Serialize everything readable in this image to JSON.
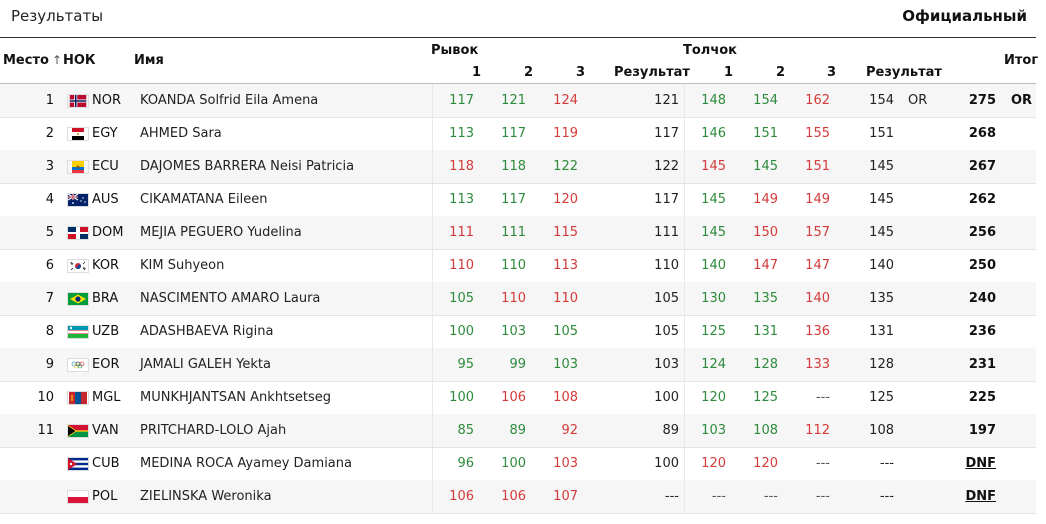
{
  "header": {
    "title": "Результаты",
    "status": "Официальный"
  },
  "columns": {
    "rank": "Место",
    "sort_icon": "↑",
    "noc": "НОК",
    "name": "Имя",
    "snatch": "Рывок",
    "cj": "Толчок",
    "attempt1": "1",
    "attempt2": "2",
    "attempt3": "3",
    "result": "Результат",
    "total": "Итог"
  },
  "colors": {
    "good": "#2e8b3d",
    "bad": "#d43b3b"
  },
  "rows": [
    {
      "rank": "1",
      "flag": "NOR",
      "noc": "NOR",
      "name": "KOANDA Solfrid Eila Amena",
      "sn": [
        [
          "117",
          "good"
        ],
        [
          "121",
          "good"
        ],
        [
          "124",
          "bad"
        ]
      ],
      "snr": "121",
      "cj": [
        [
          "148",
          "good"
        ],
        [
          "154",
          "good"
        ],
        [
          "162",
          "bad"
        ]
      ],
      "cjr": "154",
      "rec": "OR",
      "total": "275",
      "trec": "OR"
    },
    {
      "rank": "2",
      "flag": "EGY",
      "noc": "EGY",
      "name": "AHMED Sara",
      "sn": [
        [
          "113",
          "good"
        ],
        [
          "117",
          "good"
        ],
        [
          "119",
          "bad"
        ]
      ],
      "snr": "117",
      "cj": [
        [
          "146",
          "good"
        ],
        [
          "151",
          "good"
        ],
        [
          "155",
          "bad"
        ]
      ],
      "cjr": "151",
      "rec": "",
      "total": "268",
      "trec": ""
    },
    {
      "rank": "3",
      "flag": "ECU",
      "noc": "ECU",
      "name": "DAJOMES BARRERA Neisi Patricia",
      "sn": [
        [
          "118",
          "bad"
        ],
        [
          "118",
          "good"
        ],
        [
          "122",
          "good"
        ]
      ],
      "snr": "122",
      "cj": [
        [
          "145",
          "bad"
        ],
        [
          "145",
          "good"
        ],
        [
          "151",
          "bad"
        ]
      ],
      "cjr": "145",
      "rec": "",
      "total": "267",
      "trec": ""
    },
    {
      "rank": "4",
      "flag": "AUS",
      "noc": "AUS",
      "name": "CIKAMATANA Eileen",
      "sn": [
        [
          "113",
          "good"
        ],
        [
          "117",
          "good"
        ],
        [
          "120",
          "bad"
        ]
      ],
      "snr": "117",
      "cj": [
        [
          "145",
          "good"
        ],
        [
          "149",
          "bad"
        ],
        [
          "149",
          "bad"
        ]
      ],
      "cjr": "145",
      "rec": "",
      "total": "262",
      "trec": ""
    },
    {
      "rank": "5",
      "flag": "DOM",
      "noc": "DOM",
      "name": "MEJIA PEGUERO Yudelina",
      "sn": [
        [
          "111",
          "bad"
        ],
        [
          "111",
          "good"
        ],
        [
          "115",
          "bad"
        ]
      ],
      "snr": "111",
      "cj": [
        [
          "145",
          "good"
        ],
        [
          "150",
          "bad"
        ],
        [
          "157",
          "bad"
        ]
      ],
      "cjr": "145",
      "rec": "",
      "total": "256",
      "trec": ""
    },
    {
      "rank": "6",
      "flag": "KOR",
      "noc": "KOR",
      "name": "KIM Suhyeon",
      "sn": [
        [
          "110",
          "bad"
        ],
        [
          "110",
          "good"
        ],
        [
          "113",
          "bad"
        ]
      ],
      "snr": "110",
      "cj": [
        [
          "140",
          "good"
        ],
        [
          "147",
          "bad"
        ],
        [
          "147",
          "bad"
        ]
      ],
      "cjr": "140",
      "rec": "",
      "total": "250",
      "trec": ""
    },
    {
      "rank": "7",
      "flag": "BRA",
      "noc": "BRA",
      "name": "NASCIMENTO AMARO Laura",
      "sn": [
        [
          "105",
          "good"
        ],
        [
          "110",
          "bad"
        ],
        [
          "110",
          "bad"
        ]
      ],
      "snr": "105",
      "cj": [
        [
          "130",
          "good"
        ],
        [
          "135",
          "good"
        ],
        [
          "140",
          "bad"
        ]
      ],
      "cjr": "135",
      "rec": "",
      "total": "240",
      "trec": ""
    },
    {
      "rank": "8",
      "flag": "UZB",
      "noc": "UZB",
      "name": "ADASHBAEVA Rigina",
      "sn": [
        [
          "100",
          "good"
        ],
        [
          "103",
          "good"
        ],
        [
          "105",
          "good"
        ]
      ],
      "snr": "105",
      "cj": [
        [
          "125",
          "good"
        ],
        [
          "131",
          "good"
        ],
        [
          "136",
          "bad"
        ]
      ],
      "cjr": "131",
      "rec": "",
      "total": "236",
      "trec": ""
    },
    {
      "rank": "9",
      "flag": "EOR",
      "noc": "EOR",
      "name": "JAMALI GALEH Yekta",
      "sn": [
        [
          "95",
          "good"
        ],
        [
          "99",
          "good"
        ],
        [
          "103",
          "good"
        ]
      ],
      "snr": "103",
      "cj": [
        [
          "124",
          "good"
        ],
        [
          "128",
          "good"
        ],
        [
          "133",
          "bad"
        ]
      ],
      "cjr": "128",
      "rec": "",
      "total": "231",
      "trec": ""
    },
    {
      "rank": "10",
      "flag": "MGL",
      "noc": "MGL",
      "name": "MUNKHJANTSAN Ankhtsetseg",
      "sn": [
        [
          "100",
          "good"
        ],
        [
          "106",
          "bad"
        ],
        [
          "108",
          "bad"
        ]
      ],
      "snr": "100",
      "cj": [
        [
          "120",
          "good"
        ],
        [
          "125",
          "good"
        ],
        [
          "---",
          "dash"
        ]
      ],
      "cjr": "125",
      "rec": "",
      "total": "225",
      "trec": ""
    },
    {
      "rank": "11",
      "flag": "VAN",
      "noc": "VAN",
      "name": "PRITCHARD-LOLO Ajah",
      "sn": [
        [
          "85",
          "good"
        ],
        [
          "89",
          "good"
        ],
        [
          "92",
          "bad"
        ]
      ],
      "snr": "89",
      "cj": [
        [
          "103",
          "good"
        ],
        [
          "108",
          "good"
        ],
        [
          "112",
          "bad"
        ]
      ],
      "cjr": "108",
      "rec": "",
      "total": "197",
      "trec": ""
    },
    {
      "rank": "",
      "flag": "CUB",
      "noc": "CUB",
      "name": "MEDINA ROCA Ayamey Damiana",
      "sn": [
        [
          "96",
          "good"
        ],
        [
          "100",
          "good"
        ],
        [
          "103",
          "bad"
        ]
      ],
      "snr": "100",
      "cj": [
        [
          "120",
          "bad"
        ],
        [
          "120",
          "bad"
        ],
        [
          "---",
          "dash"
        ]
      ],
      "cjr": "---",
      "rec": "",
      "total": "DNF",
      "trec": ""
    },
    {
      "rank": "",
      "flag": "POL",
      "noc": "POL",
      "name": "ZIELINSKA Weronika",
      "sn": [
        [
          "106",
          "bad"
        ],
        [
          "106",
          "bad"
        ],
        [
          "107",
          "bad"
        ]
      ],
      "snr": "---",
      "cj": [
        [
          "---",
          "dash"
        ],
        [
          "---",
          "dash"
        ],
        [
          "---",
          "dash"
        ]
      ],
      "cjr": "---",
      "rec": "",
      "total": "DNF",
      "trec": ""
    }
  ]
}
